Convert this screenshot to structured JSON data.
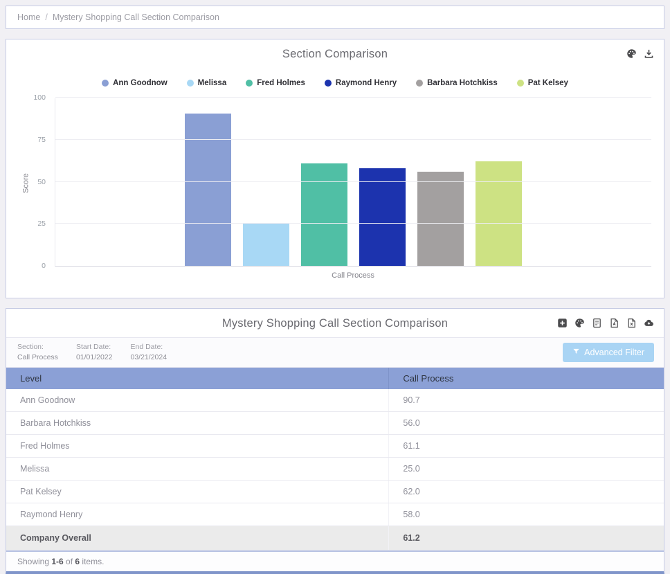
{
  "breadcrumb": {
    "home": "Home",
    "separator": "/",
    "current": "Mystery Shopping Call Section Comparison"
  },
  "chart_panel": {
    "title": "Section Comparison",
    "icons": [
      "palette-icon",
      "download-icon"
    ]
  },
  "chart_data": {
    "type": "bar",
    "title": "Section Comparison",
    "categories": [
      "Call Process"
    ],
    "series": [
      {
        "name": "Ann Goodnow",
        "color": "#8A9FD4",
        "values": [
          90.7
        ]
      },
      {
        "name": "Melissa",
        "color": "#A8D8F5",
        "values": [
          25.0
        ]
      },
      {
        "name": "Fred Holmes",
        "color": "#50BFA5",
        "values": [
          61.1
        ]
      },
      {
        "name": "Raymond Henry",
        "color": "#1C33AE",
        "values": [
          58.0
        ]
      },
      {
        "name": "Barbara Hotchkiss",
        "color": "#A3A0A0",
        "values": [
          56.0
        ]
      },
      {
        "name": "Pat Kelsey",
        "color": "#CDE283",
        "values": [
          62.0
        ]
      }
    ],
    "xlabel": "Call Process",
    "ylabel": "Score",
    "ylim": [
      0,
      100
    ],
    "yticks": [
      0,
      25,
      50,
      75,
      100
    ],
    "grid": true,
    "legend_position": "top"
  },
  "table_panel": {
    "title": "Mystery Shopping Call Section Comparison",
    "icons": [
      "add-icon",
      "palette-icon",
      "document-icon",
      "pdf-file-icon",
      "excel-file-icon",
      "cloud-download-icon"
    ],
    "filters": [
      {
        "label": "Section:",
        "value": "Call Process"
      },
      {
        "label": "Start Date:",
        "value": "01/01/2022"
      },
      {
        "label": "End Date:",
        "value": "03/21/2024"
      }
    ],
    "advanced_filter_label": "Advanced Filter",
    "columns": [
      "Level",
      "Call Process"
    ],
    "rows": [
      {
        "level": "Ann Goodnow",
        "value": "90.7"
      },
      {
        "level": "Barbara Hotchkiss",
        "value": "56.0"
      },
      {
        "level": "Fred Holmes",
        "value": "61.1"
      },
      {
        "level": "Melissa",
        "value": "25.0"
      },
      {
        "level": "Pat Kelsey",
        "value": "62.0"
      },
      {
        "level": "Raymond Henry",
        "value": "58.0"
      }
    ],
    "summary_row": {
      "level": "Company Overall",
      "value": "61.2"
    },
    "footer": {
      "prefix": "Showing ",
      "range": "1-6",
      "middle": " of ",
      "total": "6",
      "suffix": " items."
    }
  }
}
